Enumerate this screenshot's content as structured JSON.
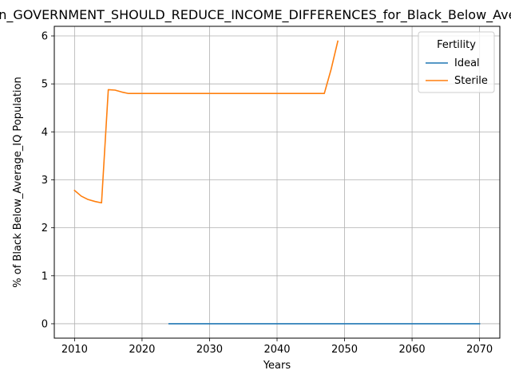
{
  "chart_data": {
    "type": "line",
    "title": "_in_GOVERNMENT_SHOULD_REDUCE_INCOME_DIFFERENCES_for_Black_Below_Average_IQ",
    "xlabel": "Years",
    "ylabel": "% of Black Below_Average_IQ Population",
    "xlim": [
      2007,
      2073
    ],
    "ylim": [
      -0.3,
      6.2
    ],
    "xticks": [
      2010,
      2020,
      2030,
      2040,
      2050,
      2060,
      2070
    ],
    "yticks": [
      0,
      1,
      2,
      3,
      4,
      5,
      6
    ],
    "grid": true,
    "legend": {
      "title": "Fertility",
      "placement": "top-right"
    },
    "series": [
      {
        "name": "Ideal",
        "color": "#1f77b4",
        "x": [
          2024,
          2030,
          2040,
          2050,
          2060,
          2070
        ],
        "y": [
          0,
          0,
          0,
          0,
          0,
          0
        ]
      },
      {
        "name": "Sterile",
        "color": "#ff7f0e",
        "x": [
          2010,
          2011,
          2012,
          2013,
          2014,
          2015,
          2016,
          2017,
          2018,
          2019,
          2020,
          2025,
          2030,
          2035,
          2040,
          2045,
          2047,
          2048,
          2049
        ],
        "y": [
          2.78,
          2.66,
          2.59,
          2.55,
          2.52,
          4.88,
          4.87,
          4.83,
          4.8,
          4.8,
          4.8,
          4.8,
          4.8,
          4.8,
          4.8,
          4.8,
          4.8,
          5.3,
          5.89
        ]
      }
    ]
  }
}
